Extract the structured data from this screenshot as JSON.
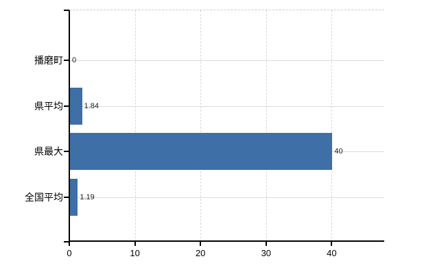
{
  "chart_data": {
    "type": "bar",
    "orientation": "horizontal",
    "title": "",
    "categories": [
      "播磨町",
      "県平均",
      "県最大",
      "全国平均"
    ],
    "values": [
      0,
      1.84,
      40,
      1.19
    ],
    "value_labels": [
      "0",
      "1.84",
      "40",
      "1.19"
    ],
    "x_ticks": [
      0,
      10,
      20,
      30,
      40
    ],
    "x_tick_labels": [
      "0",
      "10",
      "20",
      "30",
      "40"
    ],
    "xlim": [
      0,
      48
    ],
    "grid": true,
    "legend": "none"
  },
  "colors": {
    "background": "#ffffff",
    "bar": "#3e6fa7",
    "axis": "#000000",
    "grid_horizontal": "#d4ded4",
    "grid_vertical": "#d8d8dc",
    "plot_top_border": "#c9c9cf",
    "category_text": "#000000",
    "tick_text": "#000000",
    "value_text": "#1a1a1a"
  }
}
